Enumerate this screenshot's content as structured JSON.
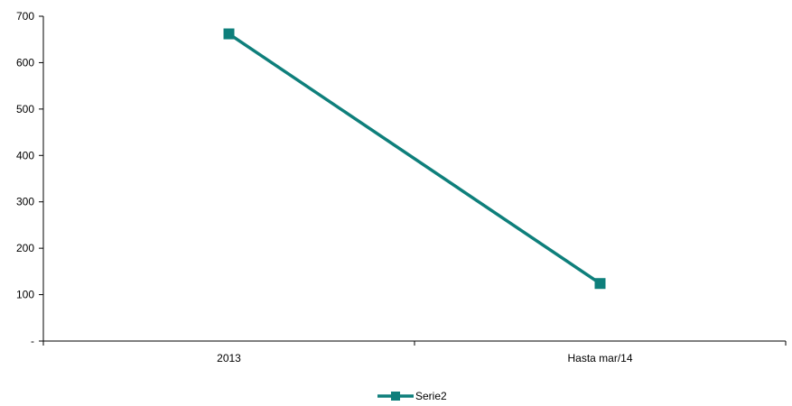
{
  "chart_data": {
    "type": "line",
    "categories": [
      "2013",
      "Hasta mar/14"
    ],
    "series": [
      {
        "name": "Serie2",
        "values": [
          662,
          124
        ],
        "color": "#0e7f7b",
        "marker": "square"
      }
    ],
    "ylim": [
      0,
      700
    ],
    "y_ticks": [
      {
        "value": 0,
        "label": "-"
      },
      {
        "value": 100,
        "label": "100"
      },
      {
        "value": 200,
        "label": "200"
      },
      {
        "value": 300,
        "label": "300"
      },
      {
        "value": 400,
        "label": "400"
      },
      {
        "value": 500,
        "label": "500"
      },
      {
        "value": 600,
        "label": "600"
      },
      {
        "value": 700,
        "label": "700"
      }
    ],
    "grid": false,
    "legend": "bottom-center"
  }
}
